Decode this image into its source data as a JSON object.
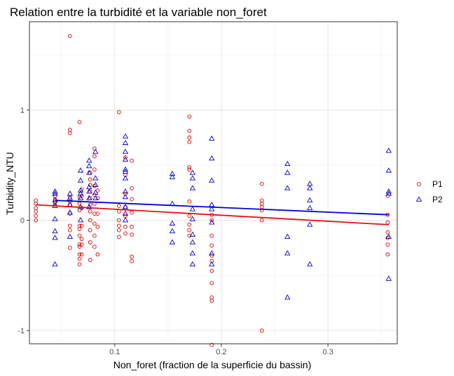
{
  "chart_data": {
    "type": "scatter",
    "title": "Relation entre la turbidité et la variable non_foret",
    "xlabel": "Non_foret (fraction de la superficie du bassin)",
    "ylabel": "Turbidity_NTU",
    "xlim": [
      0.02,
      0.365
    ],
    "ylim": [
      -1.12,
      1.8
    ],
    "x_ticks": [
      0.1,
      0.2,
      0.3
    ],
    "x_tick_labels": [
      "0.1",
      "0.2",
      "0.3"
    ],
    "y_ticks": [
      -1,
      0,
      1
    ],
    "y_tick_labels": [
      "-1",
      "0",
      "1"
    ],
    "grid": true,
    "legend_position": "right",
    "series": [
      {
        "name": "P1",
        "marker": "circle",
        "color": "#cc0000",
        "trend_line": {
          "x": [
            0.026,
            0.357
          ],
          "y": [
            0.14,
            -0.04
          ],
          "color": "#e01010"
        },
        "points": [
          [
            0.026,
            0.18
          ],
          [
            0.026,
            0.15
          ],
          [
            0.026,
            0.11
          ],
          [
            0.026,
            0.08
          ],
          [
            0.026,
            0.04
          ],
          [
            0.026,
            0.0
          ],
          [
            0.044,
            0.22
          ],
          [
            0.044,
            0.19
          ],
          [
            0.044,
            0.16
          ],
          [
            0.044,
            0.14
          ],
          [
            0.058,
            1.67
          ],
          [
            0.058,
            0.82
          ],
          [
            0.058,
            0.79
          ],
          [
            0.058,
            0.21
          ],
          [
            0.058,
            0.17
          ],
          [
            0.058,
            0.14
          ],
          [
            0.058,
            0.06
          ],
          [
            0.058,
            -0.05
          ],
          [
            0.058,
            -0.09
          ],
          [
            0.058,
            -0.25
          ],
          [
            0.067,
            0.89
          ],
          [
            0.067,
            0.21
          ],
          [
            0.067,
            0.15
          ],
          [
            0.067,
            0.09
          ],
          [
            0.067,
            -0.05
          ],
          [
            0.067,
            -0.08
          ],
          [
            0.067,
            -0.14
          ],
          [
            0.067,
            -0.22
          ],
          [
            0.067,
            -0.24
          ],
          [
            0.067,
            -0.31
          ],
          [
            0.067,
            -0.35
          ],
          [
            0.067,
            -0.4
          ],
          [
            0.069,
            0.28
          ],
          [
            0.069,
            0.22
          ],
          [
            0.069,
            0.11
          ],
          [
            0.069,
            -0.05
          ],
          [
            0.069,
            -0.17
          ],
          [
            0.069,
            -0.22
          ],
          [
            0.069,
            -0.31
          ],
          [
            0.077,
            0.43
          ],
          [
            0.077,
            0.37
          ],
          [
            0.077,
            0.32
          ],
          [
            0.077,
            0.26
          ],
          [
            0.077,
            0.2
          ],
          [
            0.077,
            0.14
          ],
          [
            0.077,
            0.08
          ],
          [
            0.077,
            0.0
          ],
          [
            0.077,
            -0.09
          ],
          [
            0.077,
            -0.2
          ],
          [
            0.077,
            -0.36
          ],
          [
            0.081,
            0.65
          ],
          [
            0.081,
            0.58
          ],
          [
            0.081,
            0.46
          ],
          [
            0.081,
            0.31
          ],
          [
            0.081,
            0.23
          ],
          [
            0.081,
            0.15
          ],
          [
            0.081,
            0.06
          ],
          [
            0.081,
            -0.03
          ],
          [
            0.081,
            -0.14
          ],
          [
            0.081,
            -0.24
          ],
          [
            0.084,
            0.27
          ],
          [
            0.084,
            0.2
          ],
          [
            0.084,
            0.06
          ],
          [
            0.084,
            -0.06
          ],
          [
            0.084,
            -0.31
          ],
          [
            0.104,
            0.98
          ],
          [
            0.104,
            0.13
          ],
          [
            0.104,
            0.08
          ],
          [
            0.104,
            0.0
          ],
          [
            0.104,
            -0.05
          ],
          [
            0.104,
            -0.09
          ],
          [
            0.104,
            -0.15
          ],
          [
            0.11,
            0.57
          ],
          [
            0.11,
            0.41
          ],
          [
            0.11,
            0.24
          ],
          [
            0.11,
            0.12
          ],
          [
            0.11,
            0.04
          ],
          [
            0.11,
            -0.06
          ],
          [
            0.11,
            -0.12
          ],
          [
            0.116,
            0.54
          ],
          [
            0.116,
            0.29
          ],
          [
            0.116,
            0.19
          ],
          [
            0.116,
            0.07
          ],
          [
            0.116,
            -0.06
          ],
          [
            0.116,
            -0.13
          ],
          [
            0.116,
            -0.33
          ],
          [
            0.116,
            -0.37
          ],
          [
            0.17,
            0.94
          ],
          [
            0.17,
            0.81
          ],
          [
            0.17,
            0.75
          ],
          [
            0.17,
            0.71
          ],
          [
            0.17,
            0.48
          ],
          [
            0.17,
            0.46
          ],
          [
            0.17,
            0.17
          ],
          [
            0.17,
            0.04
          ],
          [
            0.17,
            -0.04
          ],
          [
            0.17,
            -0.09
          ],
          [
            0.17,
            -0.14
          ],
          [
            0.191,
            0.05
          ],
          [
            0.191,
            0.0
          ],
          [
            0.191,
            -0.14
          ],
          [
            0.191,
            -0.23
          ],
          [
            0.191,
            -0.32
          ],
          [
            0.191,
            -0.37
          ],
          [
            0.191,
            -0.46
          ],
          [
            0.191,
            -0.57
          ],
          [
            0.191,
            -0.7
          ],
          [
            0.191,
            -0.73
          ],
          [
            0.191,
            -1.13
          ],
          [
            0.238,
            0.33
          ],
          [
            0.238,
            0.18
          ],
          [
            0.238,
            0.15
          ],
          [
            0.238,
            0.12
          ],
          [
            0.238,
            0.09
          ],
          [
            0.238,
            0.0
          ],
          [
            0.238,
            -1.0
          ],
          [
            0.356,
            0.22
          ],
          [
            0.356,
            0.05
          ],
          [
            0.356,
            -0.02
          ],
          [
            0.356,
            -0.11
          ],
          [
            0.356,
            -0.16
          ],
          [
            0.356,
            -0.22
          ],
          [
            0.356,
            -0.31
          ]
        ]
      },
      {
        "name": "P2",
        "marker": "triangle",
        "color": "#0000cc",
        "trend_line": {
          "x": [
            0.044,
            0.357
          ],
          "y": [
            0.18,
            0.05
          ],
          "color": "#0000dd"
        },
        "points": [
          [
            0.044,
            0.26
          ],
          [
            0.044,
            0.24
          ],
          [
            0.044,
            0.18
          ],
          [
            0.044,
            0.13
          ],
          [
            0.044,
            0.01
          ],
          [
            0.044,
            -0.1
          ],
          [
            0.044,
            -0.16
          ],
          [
            0.044,
            -0.4
          ],
          [
            0.058,
            0.24
          ],
          [
            0.058,
            0.2
          ],
          [
            0.058,
            0.14
          ],
          [
            0.058,
            0.07
          ],
          [
            0.058,
            -0.15
          ],
          [
            0.068,
            0.45
          ],
          [
            0.068,
            0.36
          ],
          [
            0.068,
            0.27
          ],
          [
            0.068,
            0.24
          ],
          [
            0.068,
            0.2
          ],
          [
            0.068,
            0.12
          ],
          [
            0.068,
            0.0
          ],
          [
            0.076,
            0.54
          ],
          [
            0.076,
            0.49
          ],
          [
            0.076,
            0.43
          ],
          [
            0.076,
            0.3
          ],
          [
            0.076,
            0.26
          ],
          [
            0.076,
            0.2
          ],
          [
            0.076,
            0.12
          ],
          [
            0.082,
            0.62
          ],
          [
            0.082,
            0.38
          ],
          [
            0.082,
            0.32
          ],
          [
            0.082,
            0.25
          ],
          [
            0.082,
            0.2
          ],
          [
            0.11,
            0.76
          ],
          [
            0.11,
            0.7
          ],
          [
            0.11,
            0.62
          ],
          [
            0.11,
            0.55
          ],
          [
            0.11,
            0.46
          ],
          [
            0.11,
            0.44
          ],
          [
            0.11,
            0.38
          ],
          [
            0.11,
            0.26
          ],
          [
            0.11,
            0.21
          ],
          [
            0.11,
            0.12
          ],
          [
            0.11,
            0.06
          ],
          [
            0.11,
            0.0
          ],
          [
            0.154,
            0.42
          ],
          [
            0.154,
            0.39
          ],
          [
            0.154,
            0.15
          ],
          [
            0.154,
            -0.03
          ],
          [
            0.154,
            -0.1
          ],
          [
            0.154,
            -0.2
          ],
          [
            0.173,
            0.43
          ],
          [
            0.173,
            0.38
          ],
          [
            0.173,
            0.29
          ],
          [
            0.173,
            0.1
          ],
          [
            0.173,
            0.01
          ],
          [
            0.173,
            -0.13
          ],
          [
            0.173,
            -0.2
          ],
          [
            0.173,
            -0.3
          ],
          [
            0.173,
            -0.4
          ],
          [
            0.191,
            0.74
          ],
          [
            0.191,
            0.56
          ],
          [
            0.191,
            0.36
          ],
          [
            0.191,
            0.14
          ],
          [
            0.191,
            0.1
          ],
          [
            0.191,
            -0.02
          ],
          [
            0.191,
            -0.3
          ],
          [
            0.191,
            -0.4
          ],
          [
            0.262,
            0.51
          ],
          [
            0.262,
            0.43
          ],
          [
            0.262,
            0.29
          ],
          [
            0.262,
            -0.15
          ],
          [
            0.262,
            -0.3
          ],
          [
            0.262,
            -0.7
          ],
          [
            0.283,
            0.33
          ],
          [
            0.283,
            0.29
          ],
          [
            0.283,
            0.18
          ],
          [
            0.283,
            0.11
          ],
          [
            0.283,
            -0.04
          ],
          [
            0.283,
            -0.4
          ],
          [
            0.357,
            0.63
          ],
          [
            0.357,
            0.45
          ],
          [
            0.357,
            0.26
          ],
          [
            0.357,
            0.24
          ],
          [
            0.357,
            -0.15
          ],
          [
            0.357,
            -0.53
          ]
        ]
      }
    ]
  }
}
